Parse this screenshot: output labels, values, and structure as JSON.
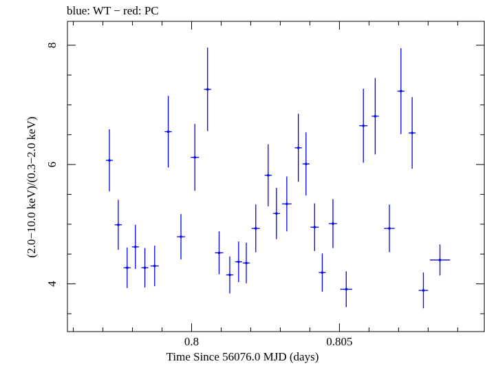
{
  "chart_data": {
    "type": "scatter",
    "title": "blue: WT − red: PC",
    "xlabel": "Time Since 56076.0 MJD (days)",
    "ylabel": "(2.0−10.0 keV)/(0.3−2.0 keV)",
    "xlim": [
      0.7958,
      0.8099
    ],
    "ylim": [
      3.2,
      8.4
    ],
    "x_ticks": [
      0.8,
      0.805
    ],
    "x_tick_labels": [
      "0.8",
      "0.805"
    ],
    "y_ticks": [
      4,
      6,
      8
    ],
    "y_tick_labels": [
      "4",
      "6",
      "8"
    ],
    "grid": false,
    "colors": {
      "series": "#0000ee",
      "axes": "#000000"
    },
    "series": [
      {
        "points": [
          {
            "x": 0.79722,
            "xerr": 0.00012,
            "y": 6.07,
            "yerr_low": 0.52,
            "yerr_high": 0.52
          },
          {
            "x": 0.79752,
            "xerr": 0.00012,
            "y": 4.99,
            "yerr_low": 0.42,
            "yerr_high": 0.42
          },
          {
            "x": 0.79782,
            "xerr": 0.00012,
            "y": 4.27,
            "yerr_low": 0.34,
            "yerr_high": 0.34
          },
          {
            "x": 0.7981,
            "xerr": 0.00012,
            "y": 4.62,
            "yerr_low": 0.37,
            "yerr_high": 0.37
          },
          {
            "x": 0.79842,
            "xerr": 0.00012,
            "y": 4.27,
            "yerr_low": 0.33,
            "yerr_high": 0.33
          },
          {
            "x": 0.79875,
            "xerr": 0.00014,
            "y": 4.3,
            "yerr_low": 0.34,
            "yerr_high": 0.34
          },
          {
            "x": 0.79921,
            "xerr": 0.00012,
            "y": 6.55,
            "yerr_low": 0.6,
            "yerr_high": 0.6
          },
          {
            "x": 0.79964,
            "xerr": 0.00014,
            "y": 4.79,
            "yerr_low": 0.38,
            "yerr_high": 0.38
          },
          {
            "x": 0.80011,
            "xerr": 0.00014,
            "y": 6.12,
            "yerr_low": 0.56,
            "yerr_high": 0.56
          },
          {
            "x": 0.80054,
            "xerr": 0.00012,
            "y": 7.26,
            "yerr_low": 0.7,
            "yerr_high": 0.7
          },
          {
            "x": 0.80093,
            "xerr": 0.00014,
            "y": 4.52,
            "yerr_low": 0.36,
            "yerr_high": 0.36
          },
          {
            "x": 0.80129,
            "xerr": 0.00012,
            "y": 4.15,
            "yerr_low": 0.31,
            "yerr_high": 0.31
          },
          {
            "x": 0.80159,
            "xerr": 0.00012,
            "y": 4.37,
            "yerr_low": 0.34,
            "yerr_high": 0.34
          },
          {
            "x": 0.80185,
            "xerr": 0.00012,
            "y": 4.35,
            "yerr_low": 0.34,
            "yerr_high": 0.34
          },
          {
            "x": 0.80217,
            "xerr": 0.00014,
            "y": 4.93,
            "yerr_low": 0.4,
            "yerr_high": 0.4
          },
          {
            "x": 0.80259,
            "xerr": 0.00012,
            "y": 5.82,
            "yerr_low": 0.52,
            "yerr_high": 0.52
          },
          {
            "x": 0.80287,
            "xerr": 0.00012,
            "y": 5.18,
            "yerr_low": 0.43,
            "yerr_high": 0.43
          },
          {
            "x": 0.80322,
            "xerr": 0.00016,
            "y": 5.34,
            "yerr_low": 0.46,
            "yerr_high": 0.46
          },
          {
            "x": 0.80361,
            "xerr": 0.00012,
            "y": 6.28,
            "yerr_low": 0.57,
            "yerr_high": 0.57
          },
          {
            "x": 0.80387,
            "xerr": 0.00012,
            "y": 6.01,
            "yerr_low": 0.53,
            "yerr_high": 0.53
          },
          {
            "x": 0.80416,
            "xerr": 0.00014,
            "y": 4.95,
            "yerr_low": 0.4,
            "yerr_high": 0.4
          },
          {
            "x": 0.80442,
            "xerr": 0.00012,
            "y": 4.19,
            "yerr_low": 0.32,
            "yerr_high": 0.32
          },
          {
            "x": 0.80478,
            "xerr": 0.00014,
            "y": 5.01,
            "yerr_low": 0.41,
            "yerr_high": 0.41
          },
          {
            "x": 0.80523,
            "xerr": 0.0002,
            "y": 3.91,
            "yerr_low": 0.3,
            "yerr_high": 0.3
          },
          {
            "x": 0.80581,
            "xerr": 0.00014,
            "y": 6.65,
            "yerr_low": 0.62,
            "yerr_high": 0.62
          },
          {
            "x": 0.80621,
            "xerr": 0.00012,
            "y": 6.81,
            "yerr_low": 0.64,
            "yerr_high": 0.64
          },
          {
            "x": 0.80669,
            "xerr": 0.00018,
            "y": 4.93,
            "yerr_low": 0.4,
            "yerr_high": 0.4
          },
          {
            "x": 0.80708,
            "xerr": 0.00012,
            "y": 7.23,
            "yerr_low": 0.72,
            "yerr_high": 0.72
          },
          {
            "x": 0.80746,
            "xerr": 0.00012,
            "y": 6.53,
            "yerr_low": 0.6,
            "yerr_high": 0.6
          },
          {
            "x": 0.80784,
            "xerr": 0.00016,
            "y": 3.89,
            "yerr_low": 0.3,
            "yerr_high": 0.3
          },
          {
            "x": 0.8084,
            "xerr": 0.00034,
            "y": 4.4,
            "yerr_low": 0.26,
            "yerr_high": 0.26
          }
        ]
      }
    ]
  }
}
